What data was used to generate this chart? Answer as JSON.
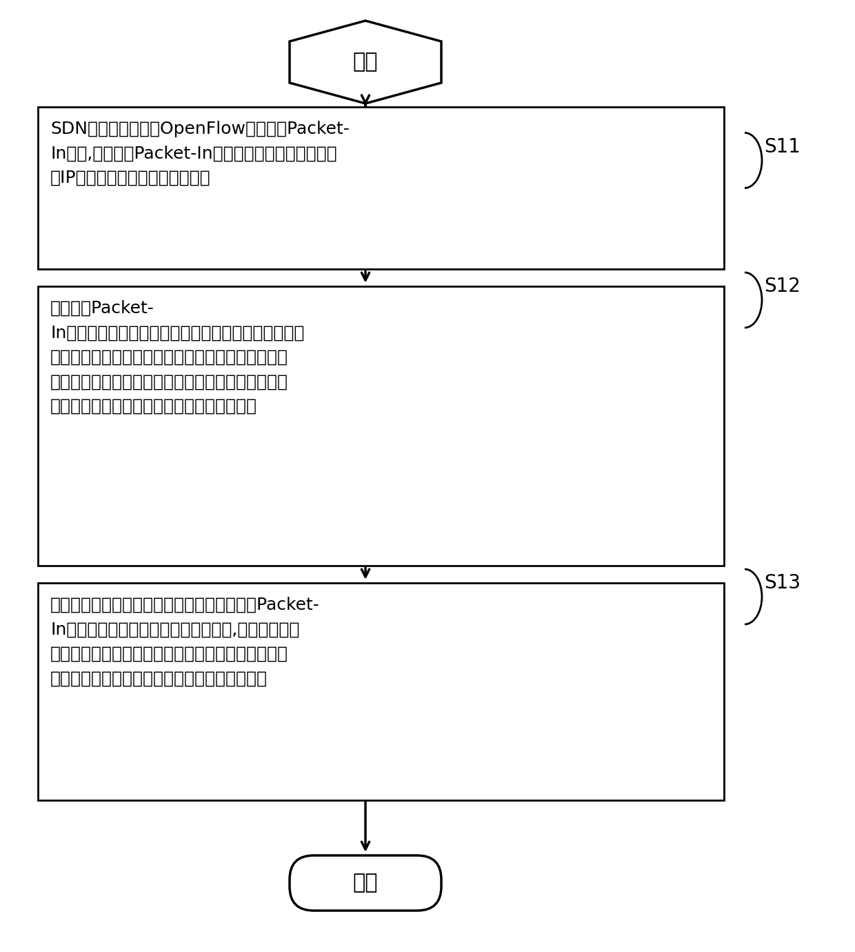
{
  "bg_color": "#ffffff",
  "line_color": "#000000",
  "text_color": "#000000",
  "start_label": "开始",
  "end_label": "结束",
  "step_labels": [
    "S11",
    "S12",
    "S13"
  ],
  "box1_text": "SDN控制器监听来自OpenFlow交换机的Packet-\nIn消息,并从所述Packet-In消息中提取相关的远程节点\n的IP地址，端口和传输协议信息；",
  "box2_text": "确定所述Packet-\nIn消息是否涉及区域链中任何受保护的节点，如果所述\n消息与区域链中的任何受保护的节点均不涉及，则将\n所述消息转发出去；否则，则在预设置的白名单、黑\n名单、灰名单中进行检索是否存在匹配项目；",
  "box3_text": "如果检索结果为不存在匹配项目，则根据所述Packet-\nIn消息生成新项目并将其附加到灰名单,并将该消息转\n发出去；如果检索结果为存在匹配项目，则根据所述\n匹配项目对应的列表类型，对所述消息进行处理",
  "font_size_box": 18,
  "font_size_label": 20,
  "font_size_start_end": 22
}
